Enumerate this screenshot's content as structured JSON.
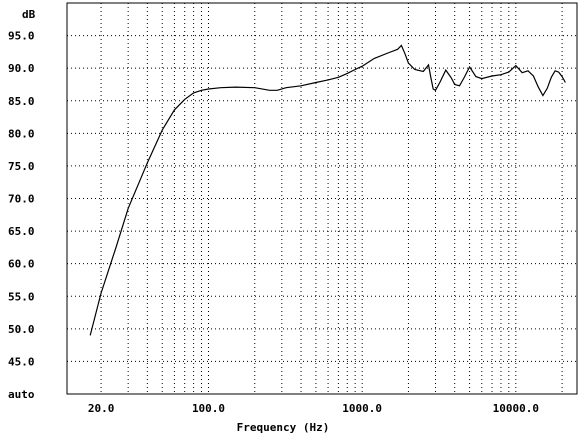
{
  "chart_data": {
    "type": "line",
    "xlabel": "Frequency (Hz)",
    "ylabel": "dB",
    "xscale": "log",
    "xlim": [
      12,
      25000
    ],
    "ylim": [
      40,
      100
    ],
    "grid": true,
    "x_ticks": [
      {
        "value": 20,
        "label": "20.0"
      },
      {
        "value": 100,
        "label": "100.0"
      },
      {
        "value": 1000,
        "label": "1000.0"
      },
      {
        "value": 10000,
        "label": "10000.0"
      }
    ],
    "y_ticks": [
      {
        "value": 95,
        "label": "95.0"
      },
      {
        "value": 90,
        "label": "90.0"
      },
      {
        "value": 85,
        "label": "85.0"
      },
      {
        "value": 80,
        "label": "80.0"
      },
      {
        "value": 75,
        "label": "75.0"
      },
      {
        "value": 70,
        "label": "70.0"
      },
      {
        "value": 65,
        "label": "65.0"
      },
      {
        "value": 60,
        "label": "60.0"
      },
      {
        "value": 55,
        "label": "55.0"
      },
      {
        "value": 50,
        "label": "50.0"
      },
      {
        "value": 45,
        "label": "45.0"
      },
      {
        "value": 40,
        "label": "auto"
      }
    ],
    "series": [
      {
        "color": "#000000",
        "x": [
          17,
          20,
          25,
          30,
          40,
          50,
          60,
          70,
          80,
          90,
          100,
          120,
          150,
          200,
          250,
          280,
          320,
          400,
          500,
          600,
          700,
          800,
          900,
          1000,
          1200,
          1500,
          1700,
          1800,
          1900,
          2000,
          2200,
          2500,
          2700,
          2800,
          2900,
          3000,
          3200,
          3500,
          3800,
          4000,
          4300,
          4600,
          5000,
          5500,
          6000,
          7000,
          8000,
          9000,
          10000,
          11000,
          12000,
          13000,
          14000,
          15000,
          16000,
          17000,
          18000,
          19000,
          20000,
          21000
        ],
        "y": [
          49.0,
          55.5,
          62.5,
          68.5,
          75.5,
          80.5,
          83.6,
          85.2,
          86.2,
          86.6,
          86.8,
          87.0,
          87.1,
          87.0,
          86.6,
          86.6,
          87.0,
          87.3,
          87.8,
          88.2,
          88.6,
          89.2,
          89.8,
          90.3,
          91.5,
          92.4,
          92.9,
          93.5,
          92.2,
          90.8,
          89.8,
          89.5,
          90.5,
          88.5,
          86.8,
          86.6,
          87.8,
          89.7,
          88.5,
          87.5,
          87.3,
          88.5,
          90.2,
          88.7,
          88.4,
          88.8,
          89.0,
          89.4,
          90.4,
          89.3,
          89.6,
          88.8,
          87.1,
          85.8,
          86.9,
          88.6,
          89.6,
          89.4,
          88.7,
          87.8
        ]
      }
    ]
  }
}
